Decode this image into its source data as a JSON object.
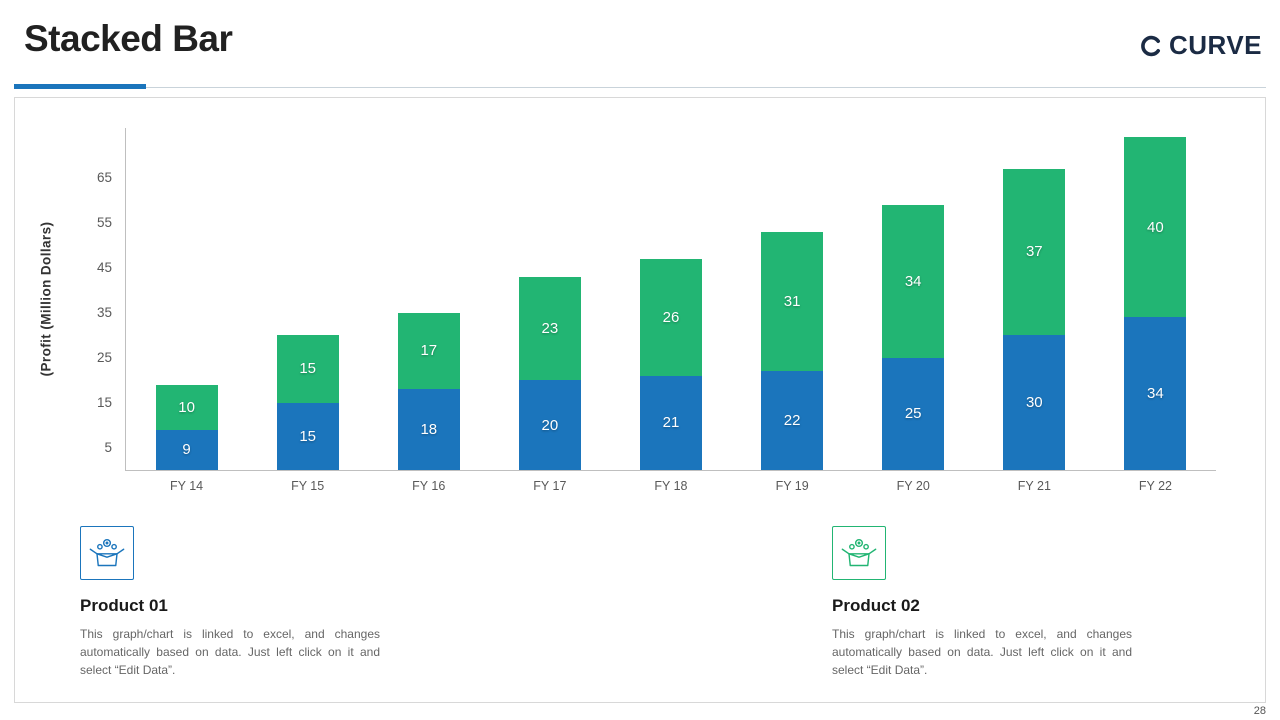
{
  "header": {
    "title": "Stacked Bar",
    "logo_text": "CURVE"
  },
  "page_number": "28",
  "chart_data": {
    "type": "bar",
    "stacked": true,
    "title": "",
    "categories": [
      "FY 14",
      "FY 15",
      "FY 16",
      "FY 17",
      "FY 18",
      "FY 19",
      "FY 20",
      "FY 21",
      "FY 22"
    ],
    "series": [
      {
        "name": "Product 01",
        "color": "#1B75BC",
        "values": [
          9,
          15,
          18,
          20,
          21,
          22,
          25,
          30,
          34
        ]
      },
      {
        "name": "Product 02",
        "color": "#22B573",
        "values": [
          10,
          15,
          17,
          23,
          26,
          31,
          34,
          37,
          40
        ]
      }
    ],
    "xlabel": "",
    "ylabel": "(Profit  (Million  Dollars)",
    "yticks": [
      5,
      15,
      25,
      35,
      45,
      55,
      65
    ],
    "ylim": [
      0,
      76
    ],
    "grid": false,
    "legend_position": "bottom"
  },
  "products": [
    {
      "title": "Product 01",
      "color": "#1B75BC",
      "description": "This graph/chart is linked to excel, and changes automatically based on data. Just left click on it and select “Edit Data”."
    },
    {
      "title": "Product 02",
      "color": "#22B573",
      "description": "This graph/chart is linked to excel, and changes automatically based on data. Just left click on it and select “Edit Data”."
    }
  ]
}
